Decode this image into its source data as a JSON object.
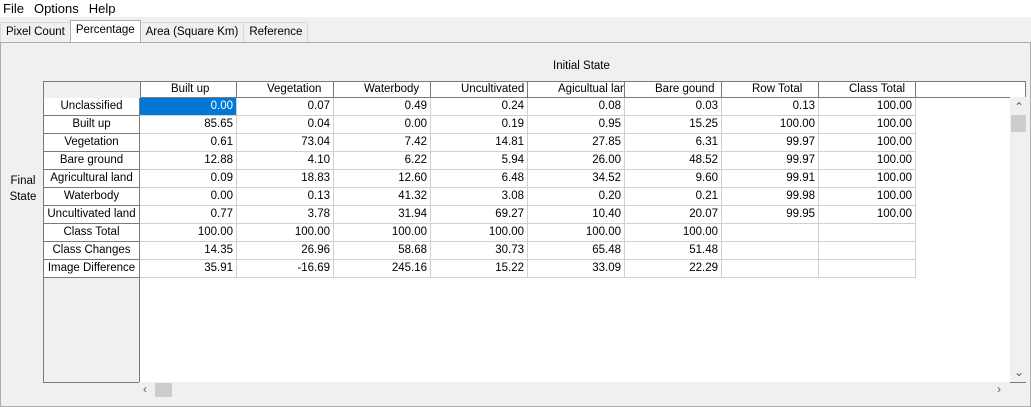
{
  "menu": [
    "File",
    "Options",
    "Help"
  ],
  "tabs": [
    "Pixel Count",
    "Percentage",
    "Area (Square Km)",
    "Reference"
  ],
  "active_tab": 1,
  "axis": {
    "initial": "Initial State",
    "final_line1": "Final",
    "final_line2": "State"
  },
  "table": {
    "columns": [
      "Built up",
      "Vegetation",
      "Waterbody",
      "Uncultivated land",
      "Agicultual land",
      "Bare gound",
      "Row Total",
      "Class Total"
    ],
    "rows": [
      {
        "label": "Unclassified",
        "cells": [
          "0.00",
          "0.07",
          "0.49",
          "0.24",
          "0.08",
          "0.03",
          "0.13",
          "100.00"
        ]
      },
      {
        "label": "Built up",
        "cells": [
          "85.65",
          "0.04",
          "0.00",
          "0.19",
          "0.95",
          "15.25",
          "100.00",
          "100.00"
        ]
      },
      {
        "label": "Vegetation",
        "cells": [
          "0.61",
          "73.04",
          "7.42",
          "14.81",
          "27.85",
          "6.31",
          "99.97",
          "100.00"
        ]
      },
      {
        "label": "Bare ground",
        "cells": [
          "12.88",
          "4.10",
          "6.22",
          "5.94",
          "26.00",
          "48.52",
          "99.97",
          "100.00"
        ]
      },
      {
        "label": "Agricultural land",
        "cells": [
          "0.09",
          "18.83",
          "12.60",
          "6.48",
          "34.52",
          "9.60",
          "99.91",
          "100.00"
        ]
      },
      {
        "label": "Waterbody",
        "cells": [
          "0.00",
          "0.13",
          "41.32",
          "3.08",
          "0.20",
          "0.21",
          "99.98",
          "100.00"
        ]
      },
      {
        "label": "Uncultivated land",
        "cells": [
          "0.77",
          "3.78",
          "31.94",
          "69.27",
          "10.40",
          "20.07",
          "99.95",
          "100.00"
        ]
      },
      {
        "label": "Class Total",
        "cells": [
          "100.00",
          "100.00",
          "100.00",
          "100.00",
          "100.00",
          "100.00",
          "",
          ""
        ]
      },
      {
        "label": "Class Changes",
        "cells": [
          "14.35",
          "26.96",
          "58.68",
          "30.73",
          "65.48",
          "51.48",
          "",
          ""
        ]
      },
      {
        "label": "Image Difference",
        "cells": [
          "35.91",
          "-16.69",
          "245.16",
          "15.22",
          "33.09",
          "22.29",
          "",
          ""
        ]
      }
    ]
  },
  "icons": {
    "scroll_up": "chevron-up-icon",
    "scroll_down": "chevron-down-icon",
    "scroll_left": "chevron-left-icon",
    "scroll_right": "chevron-right-icon"
  },
  "colors": {
    "selection": "#0078d7"
  }
}
